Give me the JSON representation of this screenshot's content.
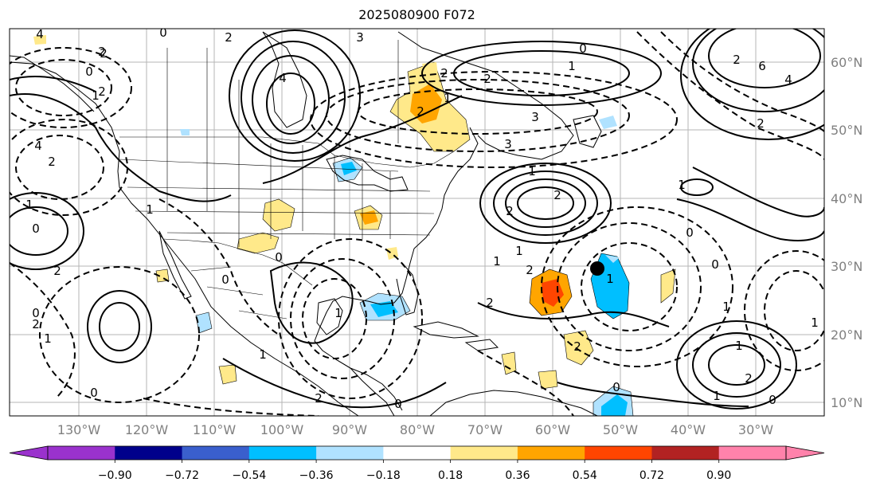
{
  "title": "2025080900 F072",
  "lon_labels": [
    "130°W",
    "120°W",
    "110°W",
    "100°W",
    "90°W",
    "80°W",
    "70°W",
    "60°W",
    "50°W",
    "40°W",
    "30°W"
  ],
  "lat_labels": [
    "60°N",
    "50°N",
    "40°N",
    "30°N",
    "20°N",
    "10°N"
  ],
  "colorbar": {
    "colors": [
      "#9a32cd",
      "#00008b",
      "#3a5fcd",
      "#00bfff",
      "#b0e2ff",
      "#ffffff",
      "#ffe98a",
      "#ffa500",
      "#ff4500",
      "#b22222",
      "#ff82ab"
    ],
    "under_color": "#9a32cd",
    "over_color": "#ff82ab",
    "ticks": [
      "−0.90",
      "−0.72",
      "−0.54",
      "−0.36",
      "−0.18",
      "0.18",
      "0.36",
      "0.54",
      "0.72",
      "0.90"
    ]
  },
  "contour_labels": [
    "4",
    "2",
    "0",
    "2",
    "1",
    "2",
    "3",
    "2",
    "4",
    "1",
    "0",
    "1",
    "2",
    "6",
    "4",
    "2",
    "4",
    "2",
    "1",
    "2",
    "2",
    "3",
    "3",
    "1",
    "2",
    "0",
    "2",
    "1",
    "0",
    "2",
    "0",
    "0",
    "1",
    "2",
    "0",
    "2",
    "0",
    "1",
    "1",
    "1",
    "2",
    "2",
    "0",
    "0",
    "1",
    "1",
    "0",
    "1",
    "2",
    "0",
    "1",
    "1",
    "1",
    "0",
    "2",
    "1",
    "2"
  ],
  "marker": "storm-position-dot"
}
